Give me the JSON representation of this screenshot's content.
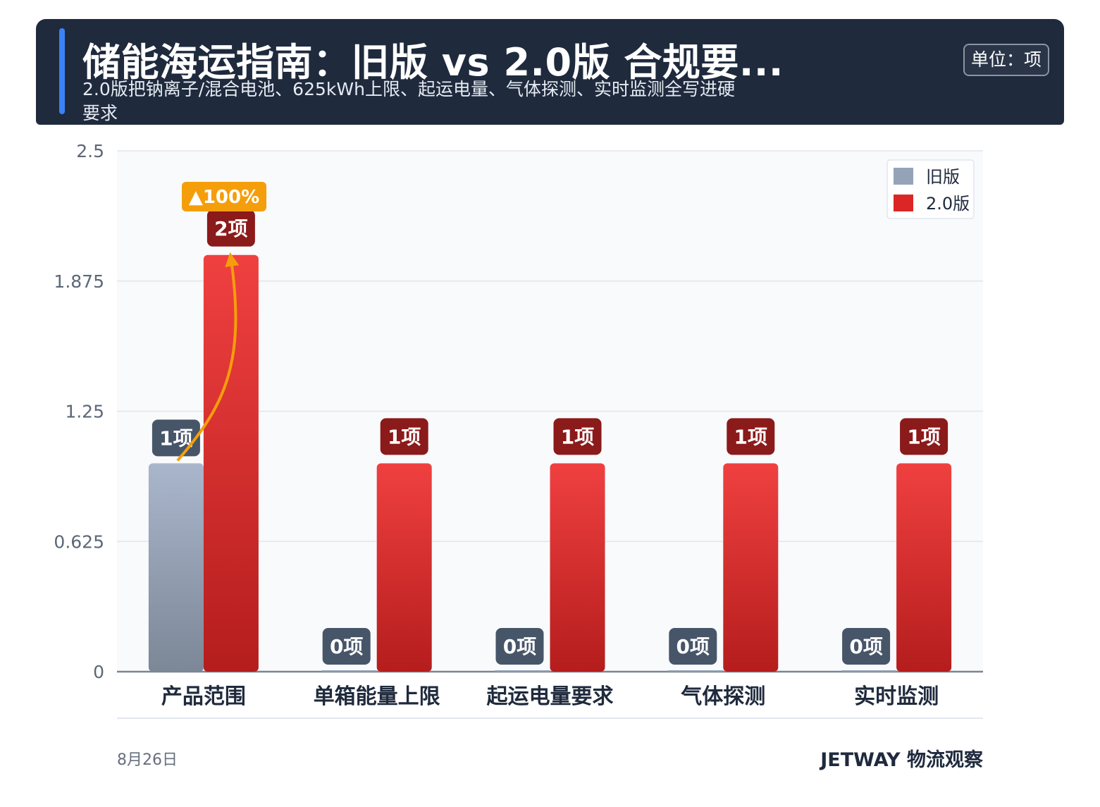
{
  "header": {
    "title": "储能海运指南：旧版 vs 2.0版 合规要...",
    "subtitle": "2.0版把钠离子/混合电池、625kWh上限、起运电量、气体探测、实时监测全写进硬要求",
    "unit": "单位：项"
  },
  "footer": {
    "date": "8月26日",
    "brand": "JETWAY 物流观察"
  },
  "colors": {
    "old": "#94a3b8",
    "new": "#dc2626",
    "old_label_bg": "#475569",
    "new_label_bg": "#8b1a1a",
    "annotation": "#f59e0b",
    "header_bg": "#1f2a3d",
    "accent": "#3b82f6"
  },
  "chart_data": {
    "type": "bar",
    "categories": [
      "产品范围",
      "单箱能量上限",
      "起运电量要求",
      "气体探测",
      "实时监测"
    ],
    "series": [
      {
        "name": "旧版",
        "values": [
          1,
          0,
          0,
          0,
          0
        ]
      },
      {
        "name": "2.0版",
        "values": [
          2,
          1,
          1,
          1,
          1
        ]
      }
    ],
    "value_labels": {
      "旧版": [
        "1项",
        "0项",
        "0项",
        "0项",
        "0项"
      ],
      "2.0版": [
        "2项",
        "1项",
        "1项",
        "1项",
        "1项"
      ]
    },
    "ylim": [
      0,
      2.5
    ],
    "yticks": [
      "0",
      "0.625",
      "1.25",
      "1.875",
      "2.5"
    ],
    "ytick_values": [
      0,
      0.625,
      1.25,
      1.875,
      2.5
    ],
    "grid": true,
    "legend_position": "top-right",
    "annotation": {
      "category": "产品范围",
      "text": "▲100%"
    }
  }
}
